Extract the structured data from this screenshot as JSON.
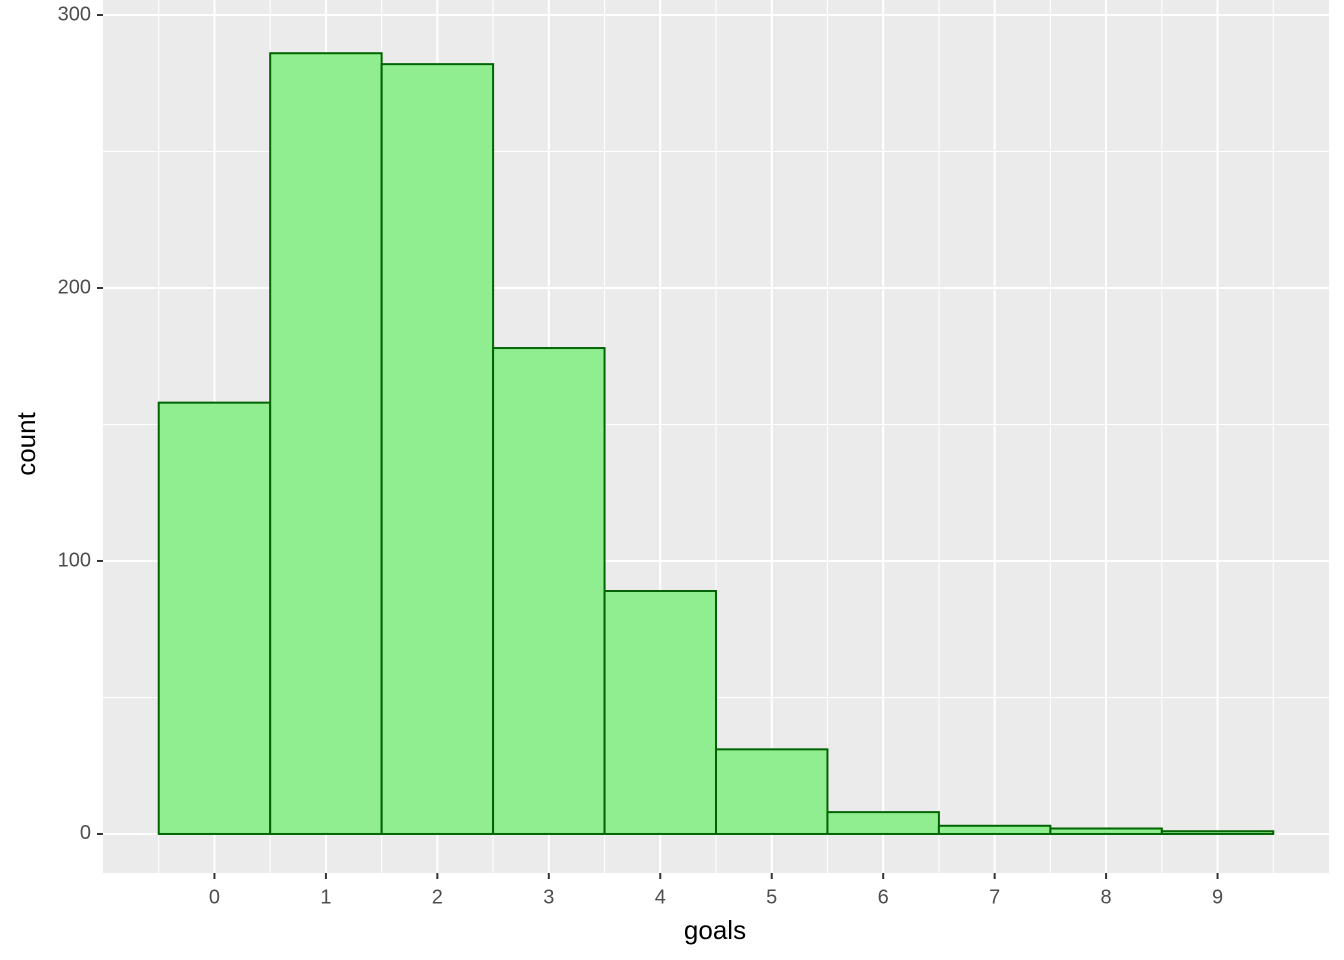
{
  "chart_data": {
    "type": "histogram",
    "x_label": "goals",
    "y_label": "count",
    "bins": [
      -0.5,
      0.5,
      1.5,
      2.5,
      3.5,
      4.5,
      5.5,
      6.5,
      7.5,
      8.5,
      9.5
    ],
    "values": [
      158,
      286,
      282,
      178,
      89,
      31,
      8,
      3,
      2,
      1
    ],
    "color": "#90EE90",
    "edge_color": "#006400",
    "xlim": [
      -1,
      10
    ],
    "xticks": [
      0,
      1,
      2,
      3,
      4,
      5,
      6,
      7,
      8,
      9
    ],
    "ylim": [
      -14.3,
      305.5
    ],
    "yticks": [
      0,
      100,
      200,
      300
    ],
    "grid": true
  }
}
